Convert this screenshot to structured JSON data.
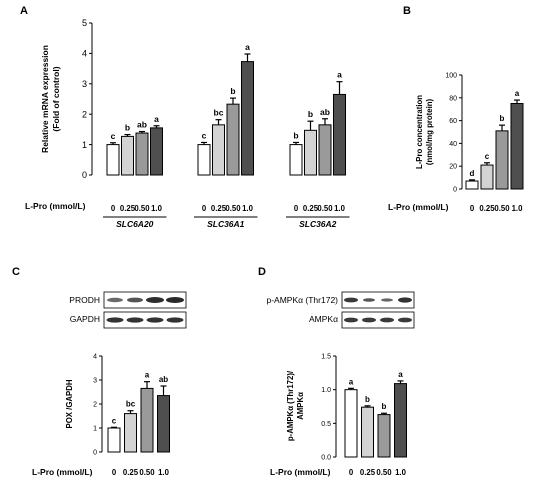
{
  "colors": {
    "c0": "#ffffff",
    "c1": "#d3d3d3",
    "c2": "#9a9a9a",
    "c3": "#4f4f4f",
    "axis": "#000000"
  },
  "panel_letters": {
    "A": "A",
    "B": "B",
    "C": "C",
    "D": "D"
  },
  "xaxis_label": "L-Pro (mmol/L)",
  "blots": {
    "C": [
      "PRODH",
      "GAPDH"
    ],
    "D": [
      "p-AMPKα (Thr172)",
      "AMPKα"
    ]
  },
  "chart_data": [
    {
      "panel": "A",
      "type": "bar",
      "ylabel": [
        "Relative mRNA expression",
        "(Fold of control)"
      ],
      "ylim": [
        0,
        5
      ],
      "yticks": [
        "0",
        "1",
        "2",
        "3",
        "4",
        "5"
      ],
      "groups": [
        {
          "name": "SLC6A20",
          "categories": [
            "0",
            "0.25",
            "0.50",
            "1.0"
          ],
          "values": [
            1.0,
            1.27,
            1.38,
            1.55
          ],
          "errors": [
            0.06,
            0.06,
            0.05,
            0.07
          ],
          "letters": [
            "c",
            "b",
            "ab",
            "a"
          ]
        },
        {
          "name": "SLC36A1",
          "categories": [
            "0",
            "0.25",
            "0.50",
            "1.0"
          ],
          "values": [
            1.0,
            1.65,
            2.33,
            3.73
          ],
          "errors": [
            0.07,
            0.17,
            0.2,
            0.25
          ],
          "letters": [
            "c",
            "bc",
            "b",
            "a"
          ]
        },
        {
          "name": "SLC36A2",
          "categories": [
            "0",
            "0.25",
            "0.50",
            "1.0"
          ],
          "values": [
            1.0,
            1.47,
            1.65,
            2.65
          ],
          "errors": [
            0.07,
            0.3,
            0.2,
            0.42
          ],
          "letters": [
            "b",
            "b",
            "ab",
            "a"
          ]
        }
      ]
    },
    {
      "panel": "B",
      "type": "bar",
      "ylabel": [
        "L-Pro concentration",
        "(nmol/mg protein)"
      ],
      "ylim": [
        0,
        100
      ],
      "yticks": [
        "0",
        "20",
        "40",
        "60",
        "80",
        "100"
      ],
      "categories": [
        "0",
        "0.25",
        "0.50",
        "1.0"
      ],
      "values": [
        7,
        21,
        51,
        75
      ],
      "errors": [
        1,
        2,
        5,
        3
      ],
      "letters": [
        "d",
        "c",
        "b",
        "a"
      ]
    },
    {
      "panel": "C",
      "type": "bar",
      "ylabel": [
        "POX /GAPDH"
      ],
      "ylim": [
        0,
        4
      ],
      "yticks": [
        "0",
        "1",
        "2",
        "3",
        "4"
      ],
      "categories": [
        "0",
        "0.25",
        "0.50",
        "1.0"
      ],
      "values": [
        1.0,
        1.6,
        2.65,
        2.35
      ],
      "errors": [
        0.03,
        0.12,
        0.28,
        0.4
      ],
      "letters": [
        "c",
        "bc",
        "a",
        "ab"
      ]
    },
    {
      "panel": "D",
      "type": "bar",
      "ylabel": [
        "p-AMPKα (Thr172)/",
        "AMPKα"
      ],
      "ylim": [
        0,
        1.5
      ],
      "yticks": [
        "0.0",
        "0.5",
        "1.0",
        "1.5"
      ],
      "categories": [
        "0",
        "0.25",
        "0.50",
        "1.0"
      ],
      "values": [
        1.0,
        0.74,
        0.63,
        1.09
      ],
      "errors": [
        0.02,
        0.02,
        0.02,
        0.04
      ],
      "letters": [
        "a",
        "b",
        "b",
        "a"
      ]
    }
  ]
}
